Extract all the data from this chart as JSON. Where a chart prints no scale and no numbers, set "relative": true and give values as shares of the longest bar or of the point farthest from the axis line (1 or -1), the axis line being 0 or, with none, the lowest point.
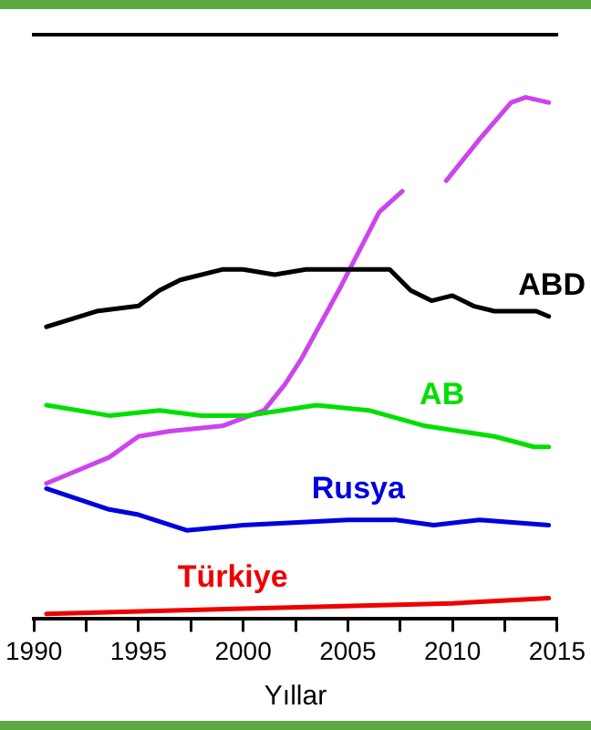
{
  "chart_data": {
    "type": "line",
    "relative": true,
    "xlabel": "Yıllar",
    "xlim": [
      1990,
      2015
    ],
    "xticks": [
      1990,
      {
        "value": 1992.5,
        "label": null
      },
      1995,
      {
        "value": 1997.5,
        "label": null
      },
      2000,
      {
        "value": 2002.5,
        "label": null
      },
      2005,
      {
        "value": 2007.5,
        "label": null
      },
      2010,
      {
        "value": 2012.5,
        "label": null
      },
      2015
    ],
    "grid": false,
    "legend": false,
    "marker": "none",
    "line_style": "solid",
    "series": [
      {
        "name": "ABD",
        "color": "#000000",
        "x": [
          1990.6,
          1993,
          1995,
          1996,
          1997,
          1999,
          2000,
          2001.5,
          2003,
          2005,
          2007,
          2008,
          2009,
          2010,
          2011,
          2012,
          2013,
          2014,
          2014.6
        ],
        "values": [
          0.56,
          0.59,
          0.6,
          0.63,
          0.65,
          0.67,
          0.67,
          0.66,
          0.67,
          0.67,
          0.67,
          0.63,
          0.61,
          0.62,
          0.6,
          0.59,
          0.59,
          0.59,
          0.58
        ]
      },
      {
        "name": "AB",
        "color": "#00e000",
        "x": [
          1990.6,
          1993.6,
          1996,
          1998,
          2000.2,
          2003.5,
          2006,
          2008.7,
          2012,
          2013.9,
          2014.6
        ],
        "values": [
          0.41,
          0.39,
          0.4,
          0.39,
          0.39,
          0.41,
          0.4,
          0.37,
          0.35,
          0.33,
          0.33
        ]
      },
      {
        "color": "#cc44ee",
        "x": [
          1990.6,
          1993.6,
          1995,
          1996.5,
          1999,
          2001,
          2002,
          2002.8,
          2004.7,
          2006.5,
          2007.6,
          2008.6,
          2009.7,
          2011.3,
          2012.8,
          2013.5,
          2014.6
        ],
        "values": [
          0.26,
          0.31,
          0.35,
          0.36,
          0.37,
          0.4,
          0.45,
          0.5,
          0.64,
          0.78,
          0.82,
          null,
          0.84,
          0.92,
          0.99,
          1,
          0.99
        ]
      },
      {
        "name": "Rusya",
        "color": "#0000dd",
        "x": [
          1990.6,
          1993.6,
          1995,
          1997.3,
          2000,
          2005,
          2007.3,
          2009.1,
          2011.3,
          2014.6
        ],
        "values": [
          0.25,
          0.21,
          0.2,
          0.17,
          0.18,
          0.19,
          0.19,
          0.18,
          0.19,
          0.18
        ]
      },
      {
        "name": "Türkiye",
        "color": "#ee0000",
        "x": [
          1990.6,
          2000,
          2010,
          2014.6
        ],
        "values": [
          0.01,
          0.02,
          0.03,
          0.04
        ]
      }
    ]
  }
}
